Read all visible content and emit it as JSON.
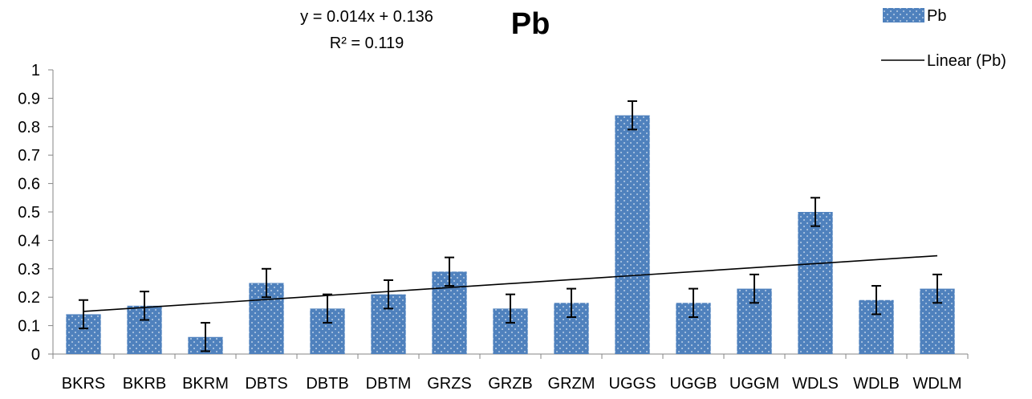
{
  "chart_data": {
    "type": "bar",
    "title": "Pb",
    "categories": [
      "BKRS",
      "BKRB",
      "BKRM",
      "DBTS",
      "DBTB",
      "DBTM",
      "GRZS",
      "GRZB",
      "GRZM",
      "UGGS",
      "UGGB",
      "UGGM",
      "WDLS",
      "WDLB",
      "WDLM"
    ],
    "series": [
      {
        "name": "Pb",
        "values": [
          0.14,
          0.17,
          0.06,
          0.25,
          0.16,
          0.21,
          0.29,
          0.16,
          0.18,
          0.84,
          0.18,
          0.23,
          0.5,
          0.19,
          0.23
        ],
        "error": [
          0.05,
          0.05,
          0.05,
          0.05,
          0.05,
          0.05,
          0.05,
          0.05,
          0.05,
          0.05,
          0.05,
          0.05,
          0.05,
          0.05,
          0.05
        ],
        "color": "#4f81bd",
        "pattern": "dotted"
      }
    ],
    "trendline": {
      "name": "Linear (Pb)",
      "type": "linear",
      "slope": 0.014,
      "intercept": 0.136,
      "equation": "y = 0.014x + 0.136",
      "r_squared": "R² = 0.119",
      "color": "#000000"
    },
    "ylim": [
      0,
      1
    ],
    "yticks": [
      "0",
      "0.1",
      "0.2",
      "0.3",
      "0.4",
      "0.5",
      "0.6",
      "0.7",
      "0.8",
      "0.9",
      "1"
    ],
    "ytick_values": [
      0,
      0.1,
      0.2,
      0.3,
      0.4,
      0.5,
      0.6,
      0.7,
      0.8,
      0.9,
      1
    ],
    "xlabel": "",
    "ylabel": "",
    "grid": false,
    "legend_position": "top-right",
    "legend": [
      {
        "label": "Pb",
        "kind": "patch"
      },
      {
        "label": "Linear (Pb)",
        "kind": "line"
      }
    ]
  }
}
